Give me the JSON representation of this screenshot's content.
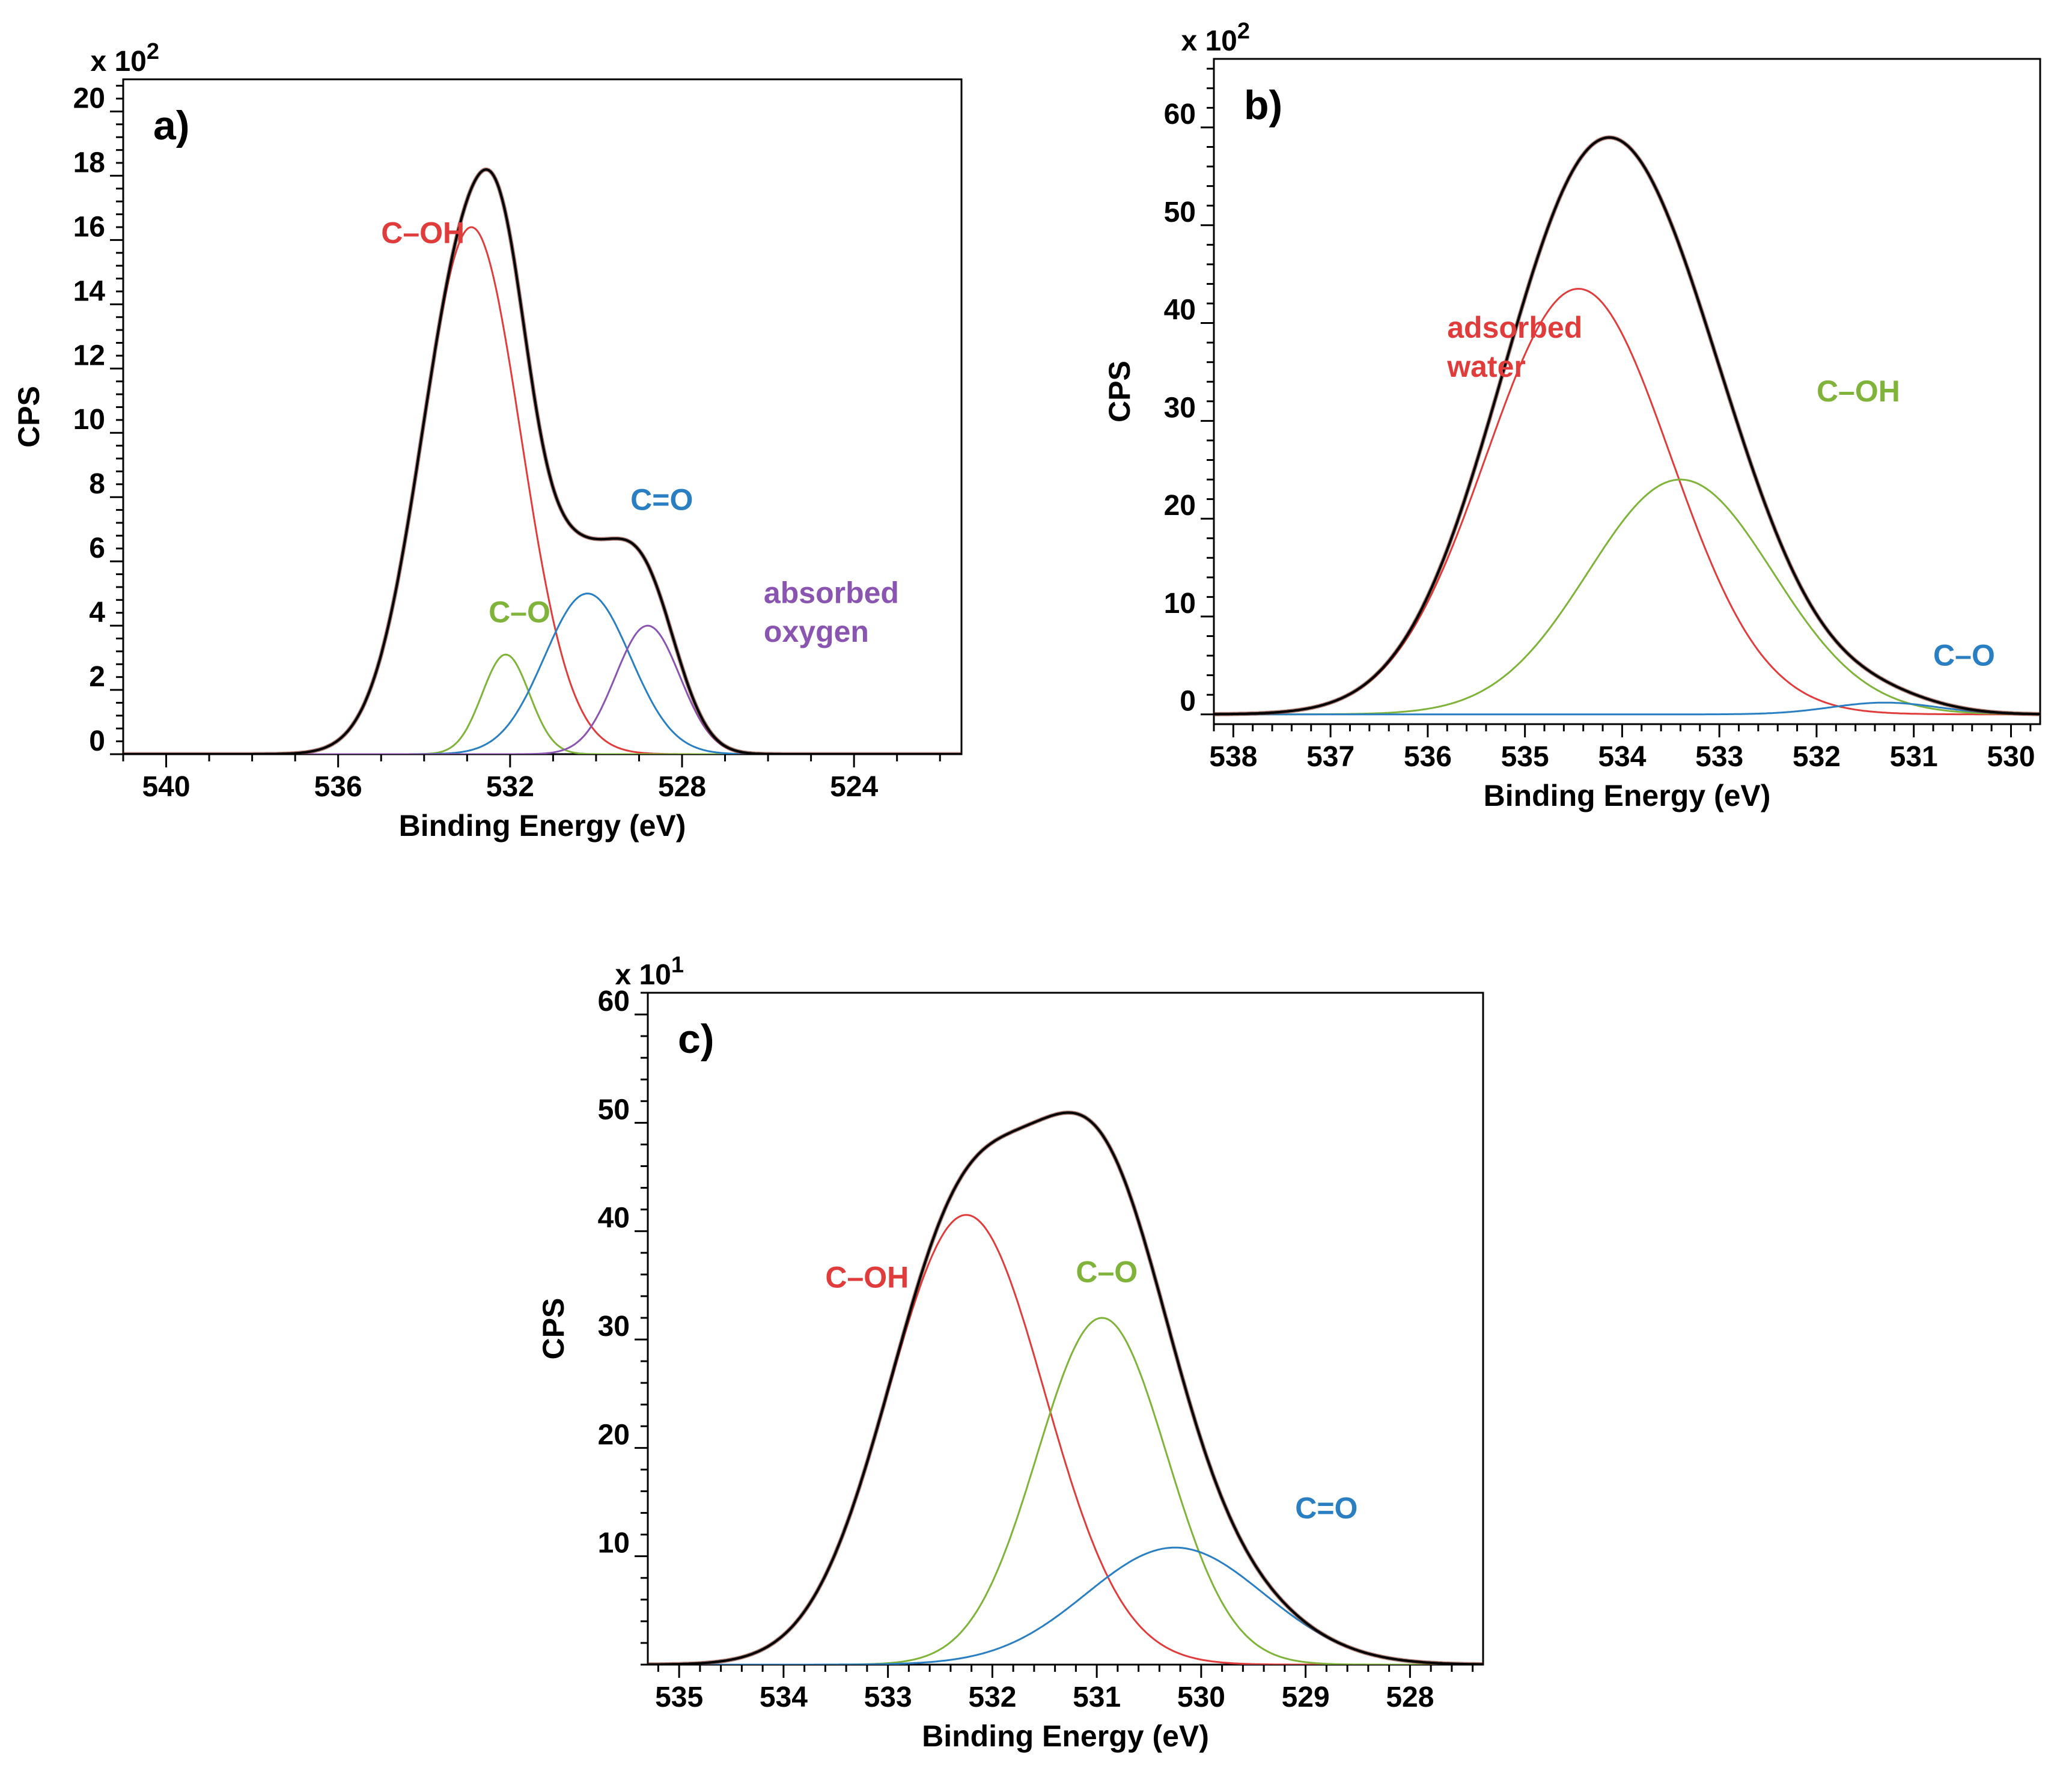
{
  "chart_data": [
    {
      "type": "line",
      "panel_label": "a)",
      "xlabel": "Binding Energy (eV)",
      "ylabel": "CPS",
      "multiplier_text": "x 10",
      "multiplier_exp": "2",
      "xlim": [
        541,
        521.5
      ],
      "ylim": [
        0,
        21
      ],
      "xticks": [
        540,
        536,
        532,
        528,
        524
      ],
      "yticks": [
        0,
        2,
        4,
        6,
        8,
        10,
        12,
        14,
        16,
        18,
        20
      ],
      "grid": false,
      "series": [
        {
          "name": "C–OH",
          "color": "#e03c3c",
          "peak": {
            "center": 532.9,
            "height": 16.4,
            "sigma": 1.15
          }
        },
        {
          "name": "C–O",
          "color": "#7fb33a",
          "peak": {
            "center": 532.1,
            "height": 3.1,
            "sigma": 0.55
          }
        },
        {
          "name": "C=O",
          "color": "#2a7fc2",
          "peak": {
            "center": 530.2,
            "height": 5.0,
            "sigma": 1.0
          }
        },
        {
          "name": "absorbed oxygen",
          "color": "#8a55b0",
          "peak": {
            "center": 528.8,
            "height": 4.0,
            "sigma": 0.75
          }
        }
      ],
      "envelope_color": "#000000",
      "annotations": [
        {
          "text": "C–OH",
          "series": 0,
          "x": 535.0,
          "y": 15.9
        },
        {
          "text": "C–O",
          "series": 1,
          "x": 532.5,
          "y": 4.1
        },
        {
          "text": "C=O",
          "series": 2,
          "x": 529.2,
          "y": 7.6
        },
        {
          "text": "absorbed",
          "series": 3,
          "x": 526.1,
          "y": 4.7
        },
        {
          "text": "oxygen",
          "series": 3,
          "x": 526.1,
          "y": 3.5
        }
      ]
    },
    {
      "type": "line",
      "panel_label": "b)",
      "xlabel": "Binding Energy (eV)",
      "ylabel": "CPS",
      "multiplier_text": "x 10",
      "multiplier_exp": "2",
      "xlim": [
        538.2,
        529.7
      ],
      "ylim": [
        -1,
        67
      ],
      "xticks": [
        538,
        537,
        536,
        535,
        534,
        533,
        532,
        531,
        530
      ],
      "yticks": [
        0,
        10,
        20,
        30,
        40,
        50,
        60
      ],
      "grid": false,
      "series": [
        {
          "name": "adsorbed water",
          "color": "#e03c3c",
          "peak": {
            "center": 534.45,
            "height": 43.5,
            "sigma": 0.95
          }
        },
        {
          "name": "C–OH",
          "color": "#7fb33a",
          "peak": {
            "center": 533.4,
            "height": 24.0,
            "sigma": 0.95
          }
        },
        {
          "name": "C–O",
          "color": "#2a7fc2",
          "peak": {
            "center": 531.3,
            "height": 1.2,
            "sigma": 0.55
          }
        }
      ],
      "envelope_color": "#000000",
      "annotations": [
        {
          "text": "adsorbed",
          "series": 0,
          "x": 535.8,
          "y": 38.5
        },
        {
          "text": "water",
          "series": 0,
          "x": 535.8,
          "y": 34.5
        },
        {
          "text": "C–OH",
          "series": 1,
          "x": 532.0,
          "y": 32.0
        },
        {
          "text": "C–O",
          "series": 2,
          "x": 530.8,
          "y": 5.0
        }
      ]
    },
    {
      "type": "line",
      "panel_label": "c)",
      "xlabel": "Binding Energy (eV)",
      "ylabel": "CPS",
      "multiplier_text": "x 10",
      "multiplier_exp": "1",
      "xlim": [
        535.3,
        527.3
      ],
      "ylim": [
        0,
        62
      ],
      "xticks": [
        535,
        534,
        533,
        532,
        531,
        530,
        529,
        528
      ],
      "yticks": [
        10,
        20,
        30,
        40,
        50,
        60
      ],
      "grid": false,
      "series": [
        {
          "name": "C–OH",
          "color": "#e03c3c",
          "peak": {
            "center": 532.25,
            "height": 41.5,
            "sigma": 0.75
          }
        },
        {
          "name": "C–O",
          "color": "#7fb33a",
          "peak": {
            "center": 530.95,
            "height": 32.0,
            "sigma": 0.62
          }
        },
        {
          "name": "C=O",
          "color": "#2a7fc2",
          "peak": {
            "center": 530.25,
            "height": 10.8,
            "sigma": 0.85
          }
        }
      ],
      "envelope_color": "#000000",
      "annotations": [
        {
          "text": "C–OH",
          "series": 0,
          "x": 533.6,
          "y": 34.8
        },
        {
          "text": "C–O",
          "series": 1,
          "x": 531.2,
          "y": 35.3
        },
        {
          "text": "C=O",
          "series": 2,
          "x": 529.1,
          "y": 13.5
        }
      ]
    }
  ]
}
